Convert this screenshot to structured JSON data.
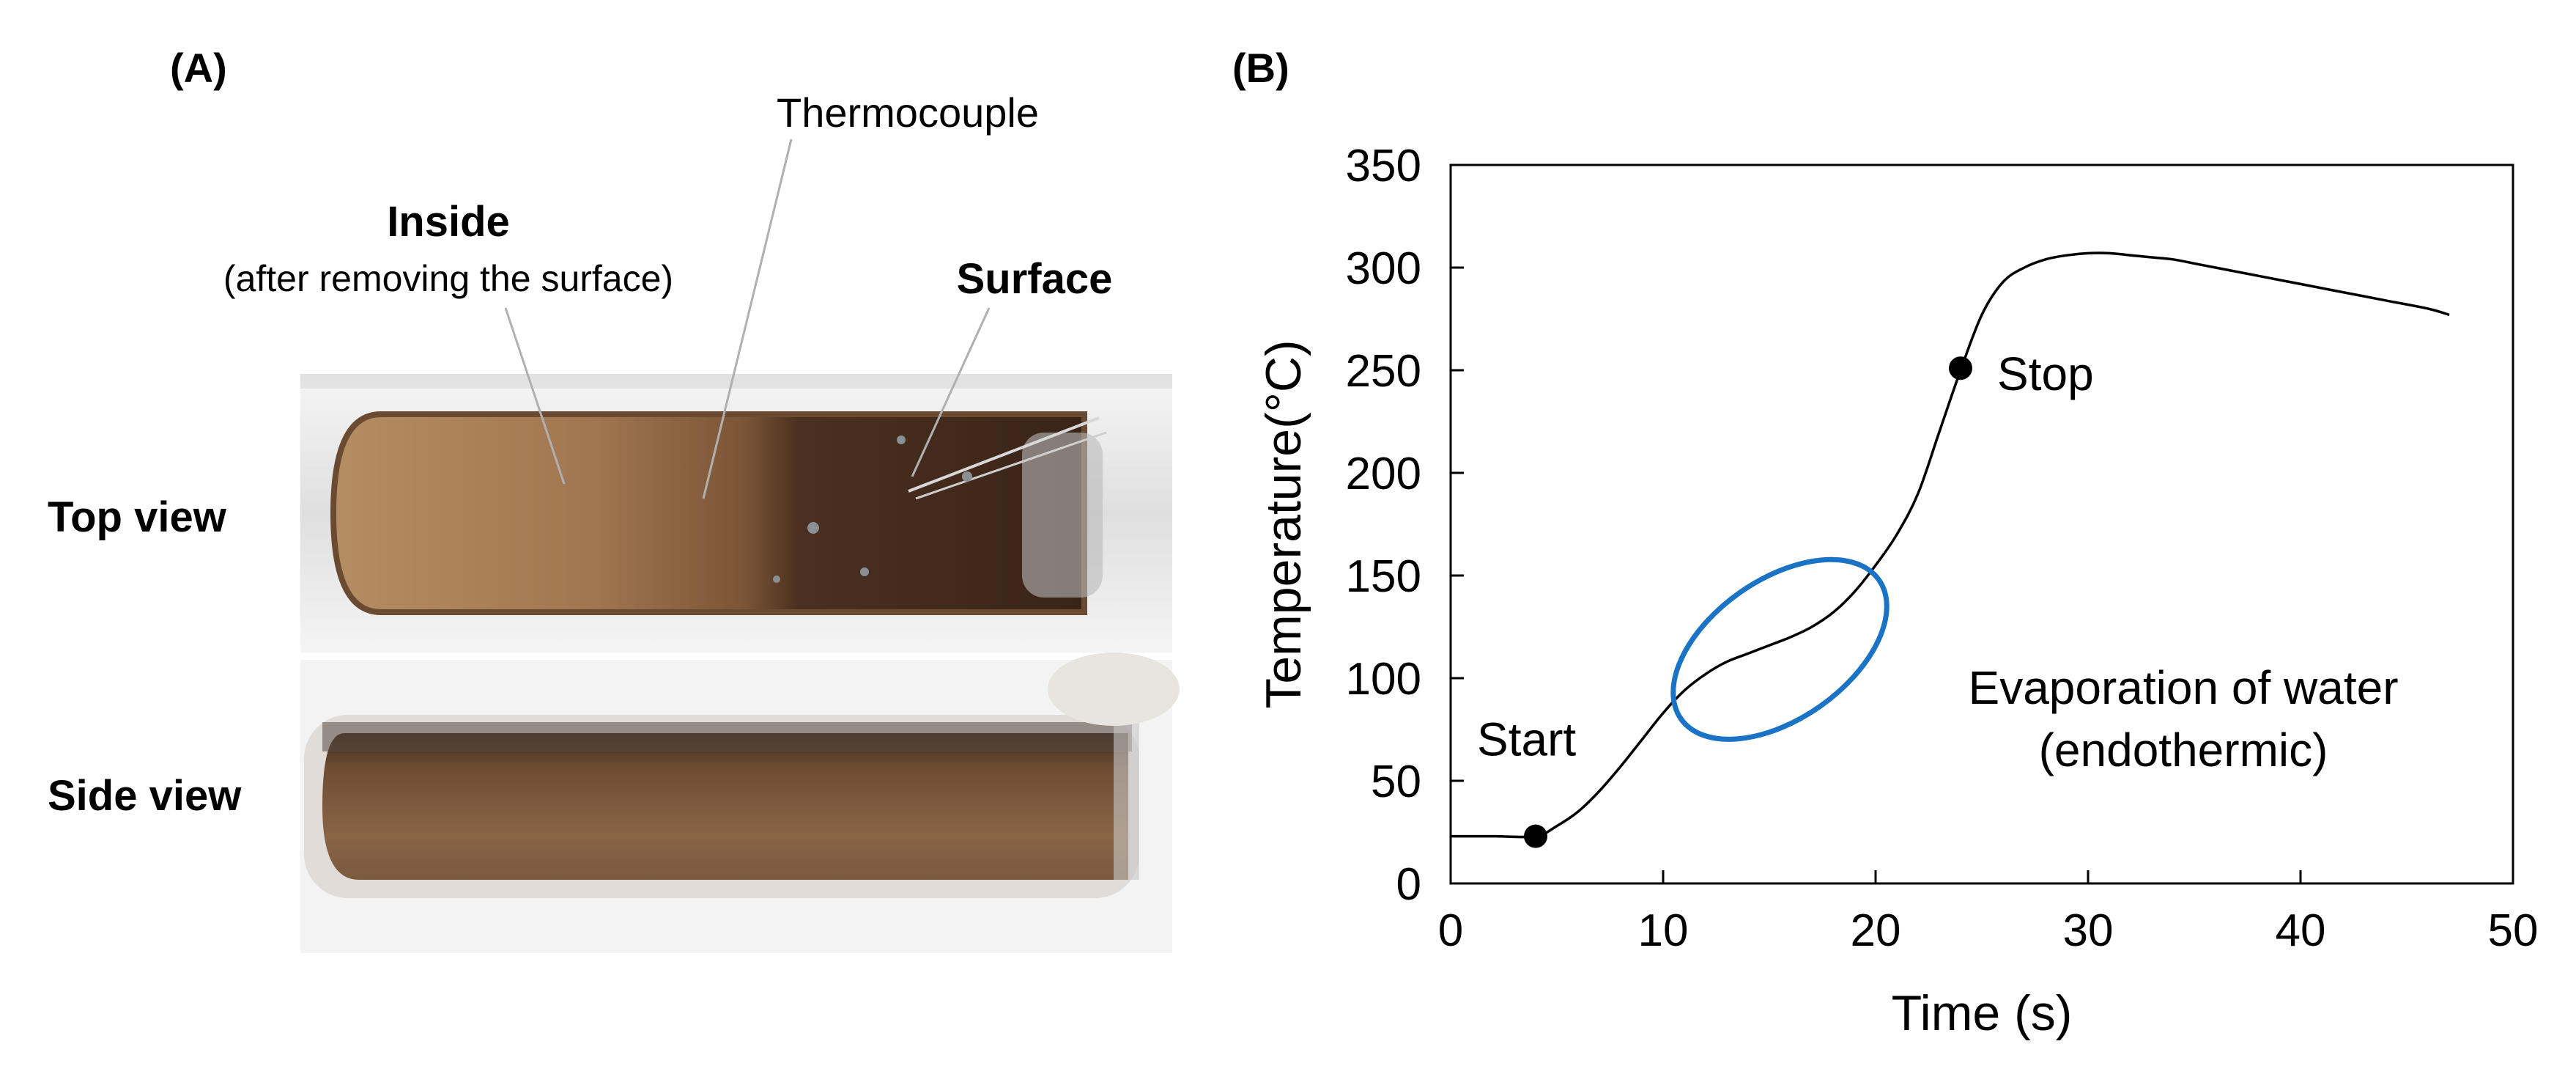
{
  "panel_a": {
    "label": "(A)",
    "annotations": {
      "thermocouple": "Thermocouple",
      "inside": "Inside",
      "inside_note": "(after removing the surface)",
      "surface": "Surface"
    },
    "views": {
      "top": "Top view",
      "side": "Side view"
    }
  },
  "panel_b": {
    "label": "(B)"
  },
  "chart_data": {
    "type": "line",
    "title": "",
    "xlabel": "Time (s)",
    "ylabel": "Temperature(°C)",
    "xlim": [
      0,
      50
    ],
    "ylim": [
      0,
      350
    ],
    "xticks": [
      0,
      10,
      20,
      30,
      40,
      50
    ],
    "yticks": [
      0,
      50,
      100,
      150,
      200,
      250,
      300,
      350
    ],
    "grid": false,
    "series": [
      {
        "name": "Temperature",
        "color": "#000000",
        "x": [
          0,
          2,
          4,
          5,
          6,
          7,
          8,
          9,
          10,
          11,
          12,
          13,
          14,
          15,
          16,
          17,
          18,
          19,
          20,
          21,
          22,
          23,
          24,
          25,
          26,
          27,
          28,
          29,
          30,
          31,
          32,
          33,
          34,
          35,
          36,
          38,
          40,
          42,
          44,
          46,
          47
        ],
        "y": [
          23,
          23,
          23,
          28,
          35,
          45,
          57,
          70,
          83,
          94,
          102,
          108,
          112,
          116,
          120,
          125,
          132,
          142,
          155,
          170,
          190,
          220,
          250,
          277,
          293,
          300,
          304,
          306,
          307,
          307,
          306,
          305,
          304,
          302,
          300,
          296,
          292,
          288,
          284,
          280,
          277
        ]
      }
    ],
    "markers": [
      {
        "label": "Start",
        "x": 4,
        "y": 23
      },
      {
        "label": "Stop",
        "x": 24,
        "y": 251
      }
    ],
    "annotation": {
      "text_line1": "Evaporation of water",
      "text_line2": "(endothermic)",
      "color": "#1a73c4",
      "ellipse_center": [
        15.5,
        114
      ],
      "ellipse_rx": 5.5,
      "ellipse_ry": 32
    }
  }
}
